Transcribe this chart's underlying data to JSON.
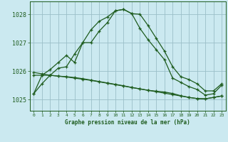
{
  "title": "Graphe pression niveau de la mer (hPa)",
  "bg_color": "#cbe9f0",
  "grid_color": "#9bbfc8",
  "line_color": "#1e5c1e",
  "xlim": [
    -0.5,
    23.5
  ],
  "ylim": [
    1024.6,
    1028.45
  ],
  "yticks": [
    1025,
    1026,
    1027,
    1028
  ],
  "xticks": [
    0,
    1,
    2,
    3,
    4,
    5,
    6,
    7,
    8,
    9,
    10,
    11,
    12,
    13,
    14,
    15,
    16,
    17,
    18,
    19,
    20,
    21,
    22,
    23
  ],
  "series1": [
    1025.2,
    1025.55,
    1025.85,
    1026.1,
    1026.15,
    1026.6,
    1027.0,
    1027.45,
    1027.75,
    1027.9,
    1028.12,
    1028.17,
    1028.02,
    1028.0,
    1027.6,
    1027.15,
    1026.7,
    1026.15,
    1025.8,
    1025.7,
    1025.55,
    1025.3,
    1025.3,
    1025.55
  ],
  "series2": [
    1025.2,
    1025.85,
    1026.05,
    1026.3,
    1026.55,
    1026.3,
    1027.0,
    1027.0,
    1027.4,
    1027.7,
    1028.12,
    1028.17,
    1028.02,
    1027.5,
    1027.1,
    1026.75,
    1026.4,
    1025.75,
    1025.6,
    1025.45,
    1025.35,
    1025.15,
    1025.2,
    1025.5
  ],
  "series3": [
    1025.85,
    1025.85,
    1025.85,
    1025.82,
    1025.8,
    1025.77,
    1025.73,
    1025.68,
    1025.63,
    1025.58,
    1025.53,
    1025.48,
    1025.42,
    1025.37,
    1025.32,
    1025.27,
    1025.22,
    1025.17,
    1025.12,
    1025.07,
    1025.03,
    1025.02,
    1025.07,
    1025.12
  ],
  "series4": [
    1025.95,
    1025.9,
    1025.85,
    1025.82,
    1025.79,
    1025.75,
    1025.71,
    1025.67,
    1025.62,
    1025.57,
    1025.52,
    1025.47,
    1025.42,
    1025.37,
    1025.32,
    1025.29,
    1025.26,
    1025.21,
    1025.13,
    1025.07,
    1025.03,
    1025.02,
    1025.07,
    1025.12
  ]
}
